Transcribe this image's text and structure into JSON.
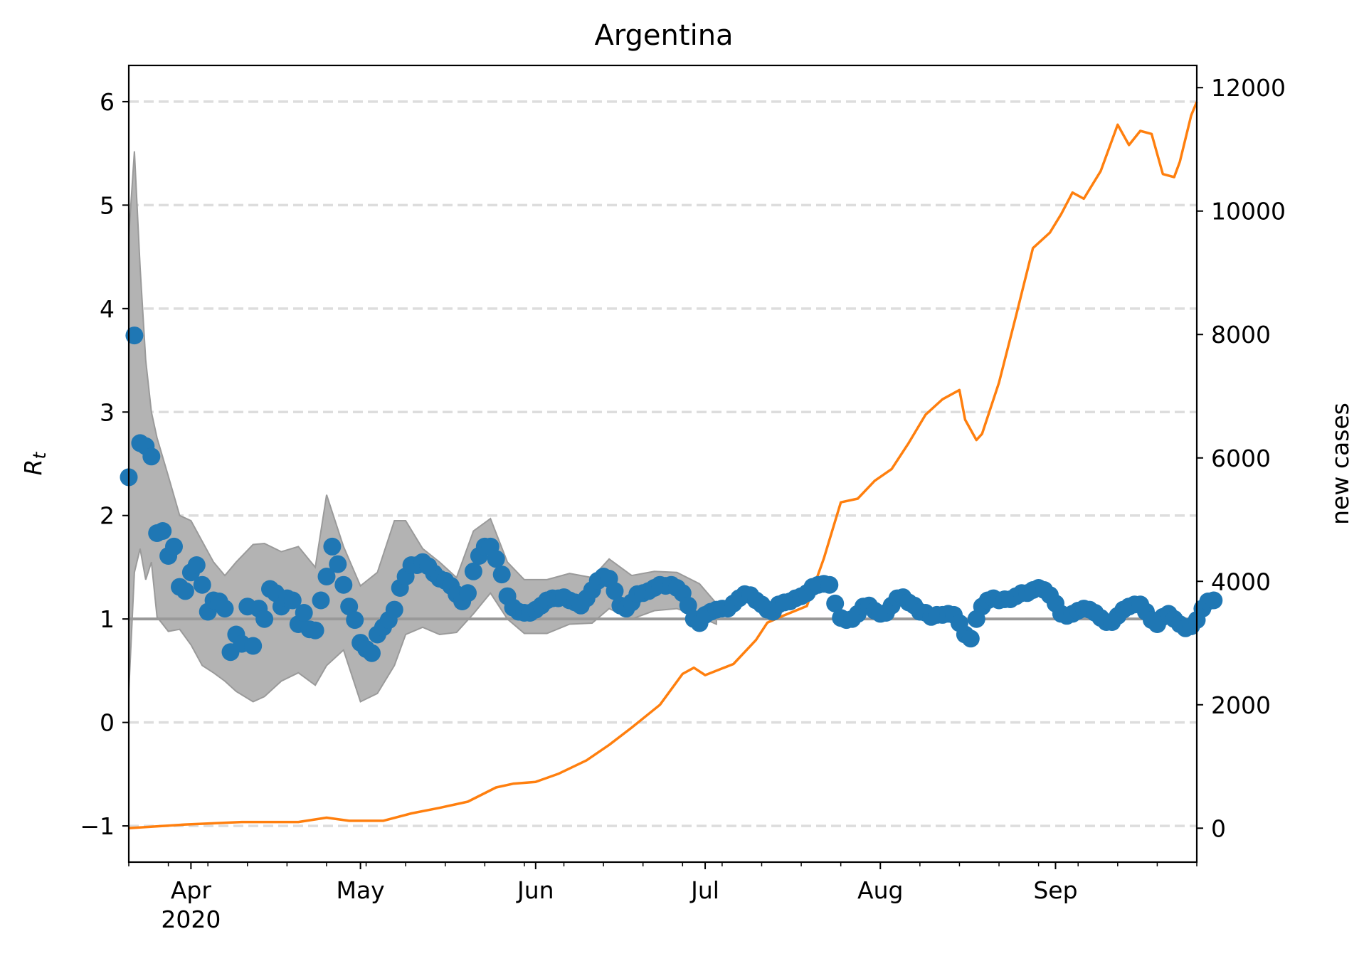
{
  "colors": {
    "rt_points": "#1f77b4",
    "cases_line": "#ff7f0e",
    "ci_band": "#b3b3b3",
    "reference_line": "#999999",
    "grid": "#dddddd"
  },
  "chart_data": {
    "type": "line",
    "title": "Argentina",
    "ylabel_left": {
      "base": "R",
      "subscript": "t"
    },
    "ylabel_right": "new cases",
    "grid": "horizontal dashed (left axis)",
    "legend": "none",
    "x_axis": {
      "range": [
        "2020-03-21",
        "2020-09-26"
      ],
      "month_labels": [
        {
          "date": "2020-04-01",
          "label": "Apr",
          "sub": "2020"
        },
        {
          "date": "2020-05-01",
          "label": "May",
          "sub": ""
        },
        {
          "date": "2020-06-01",
          "label": "Jun",
          "sub": ""
        },
        {
          "date": "2020-07-01",
          "label": "Jul",
          "sub": ""
        },
        {
          "date": "2020-08-01",
          "label": "Aug",
          "sub": ""
        },
        {
          "date": "2020-09-01",
          "label": "Sep",
          "sub": ""
        }
      ],
      "minor_ticks": "weekly"
    },
    "y_left": {
      "range": [
        -1.35,
        6.35
      ],
      "ticks": [
        -1,
        0,
        1,
        2,
        3,
        4,
        5,
        6
      ],
      "tick_labels": [
        "−1",
        "0",
        "1",
        "2",
        "3",
        "4",
        "5",
        "6"
      ],
      "reference_line": 1
    },
    "y_right": {
      "range": [
        -550,
        12360
      ],
      "ticks": [
        0,
        2000,
        4000,
        6000,
        8000,
        10000,
        12000
      ],
      "tick_labels": [
        "0",
        "2000",
        "4000",
        "6000",
        "8000",
        "10000",
        "12000"
      ]
    },
    "series": [
      {
        "axis": "left",
        "kind": "scatter",
        "x_start": "2020-03-21",
        "x_step_days": 1,
        "values": [
          2.37,
          3.74,
          2.7,
          2.67,
          2.57,
          1.83,
          1.85,
          1.61,
          1.7,
          1.31,
          1.27,
          1.45,
          1.52,
          1.33,
          1.07,
          1.18,
          1.17,
          1.1,
          0.68,
          0.85,
          0.76,
          1.12,
          0.74,
          1.1,
          1.0,
          1.29,
          1.25,
          1.12,
          1.2,
          1.18,
          0.95,
          1.06,
          0.9,
          0.89,
          1.18,
          1.41,
          1.7,
          1.53,
          1.33,
          1.12,
          0.99,
          0.77,
          0.71,
          0.67,
          0.85,
          0.92,
          0.99,
          1.09,
          1.3,
          1.41,
          1.52,
          1.52,
          1.55,
          1.51,
          1.44,
          1.39,
          1.37,
          1.32,
          1.24,
          1.17,
          1.25,
          1.46,
          1.61,
          1.7,
          1.7,
          1.58,
          1.43,
          1.22,
          1.11,
          1.07,
          1.06,
          1.06,
          1.09,
          1.13,
          1.18,
          1.2,
          1.2,
          1.21,
          1.18,
          1.16,
          1.13,
          1.2,
          1.28,
          1.37,
          1.41,
          1.39,
          1.27,
          1.13,
          1.1,
          1.16,
          1.24,
          1.25,
          1.27,
          1.3,
          1.33,
          1.32,
          1.33,
          1.3,
          1.25,
          1.13,
          1.0,
          0.96,
          1.04,
          1.07,
          1.09,
          1.1,
          1.1,
          1.15,
          1.2,
          1.24,
          1.23,
          1.18,
          1.14,
          1.09,
          1.07,
          1.14,
          1.16,
          1.17,
          1.2,
          1.22,
          1.25,
          1.31,
          1.33,
          1.34,
          1.33,
          1.15,
          1.01,
          0.99,
          1.0,
          1.05,
          1.12,
          1.13,
          1.08,
          1.05,
          1.06,
          1.13,
          1.2,
          1.21,
          1.16,
          1.13,
          1.07,
          1.06,
          1.02,
          1.04,
          1.04,
          1.05,
          1.04,
          0.96,
          0.85,
          0.81,
          1.0,
          1.12,
          1.18,
          1.2,
          1.18,
          1.19,
          1.19,
          1.22,
          1.25,
          1.25,
          1.28,
          1.3,
          1.28,
          1.23,
          1.15,
          1.05,
          1.03,
          1.05,
          1.08,
          1.1,
          1.09,
          1.06,
          1.01,
          0.97,
          0.97,
          1.03,
          1.09,
          1.12,
          1.14,
          1.14,
          1.07,
          0.99,
          0.95,
          1.02,
          1.05,
          1.0,
          0.95,
          0.91,
          0.93,
          0.99,
          1.1,
          1.17,
          1.18
        ]
      },
      {
        "axis": "left",
        "kind": "band",
        "x": [
          "2020-03-21",
          "2020-03-22",
          "2020-03-23",
          "2020-03-24",
          "2020-03-25",
          "2020-03-26",
          "2020-03-28",
          "2020-03-30",
          "2020-04-01",
          "2020-04-03",
          "2020-04-05",
          "2020-04-07",
          "2020-04-09",
          "2020-04-12",
          "2020-04-14",
          "2020-04-17",
          "2020-04-20",
          "2020-04-23",
          "2020-04-25",
          "2020-04-28",
          "2020-05-01",
          "2020-05-04",
          "2020-05-07",
          "2020-05-09",
          "2020-05-12",
          "2020-05-15",
          "2020-05-18",
          "2020-05-21",
          "2020-05-24",
          "2020-05-27",
          "2020-05-30",
          "2020-06-03",
          "2020-06-07",
          "2020-06-11",
          "2020-06-14",
          "2020-06-18",
          "2020-06-22",
          "2020-06-26",
          "2020-06-30",
          "2020-07-03"
        ],
        "upper": [
          4.7,
          5.52,
          4.4,
          3.5,
          3.0,
          2.75,
          2.38,
          2.0,
          1.95,
          1.75,
          1.55,
          1.42,
          1.55,
          1.72,
          1.73,
          1.65,
          1.7,
          1.5,
          2.2,
          1.7,
          1.32,
          1.45,
          1.95,
          1.95,
          1.68,
          1.55,
          1.4,
          1.85,
          1.97,
          1.55,
          1.38,
          1.38,
          1.44,
          1.4,
          1.58,
          1.42,
          1.46,
          1.45,
          1.34,
          1.15
        ],
        "lower": [
          0.3,
          1.45,
          1.68,
          1.38,
          1.55,
          1.02,
          0.88,
          0.9,
          0.75,
          0.55,
          0.48,
          0.4,
          0.3,
          0.2,
          0.25,
          0.4,
          0.48,
          0.36,
          0.55,
          0.7,
          0.2,
          0.28,
          0.55,
          0.85,
          0.92,
          0.85,
          0.87,
          1.05,
          1.25,
          1.0,
          0.86,
          0.86,
          0.95,
          0.96,
          1.1,
          1.0,
          1.08,
          1.1,
          1.02,
          0.95
        ]
      },
      {
        "axis": "right",
        "kind": "line",
        "x": [
          "2020-03-21",
          "2020-03-31",
          "2020-04-10",
          "2020-04-20",
          "2020-04-25",
          "2020-04-29",
          "2020-05-05",
          "2020-05-10",
          "2020-05-15",
          "2020-05-20",
          "2020-05-25",
          "2020-05-28",
          "2020-06-01",
          "2020-06-05",
          "2020-06-10",
          "2020-06-14",
          "2020-06-18",
          "2020-06-23",
          "2020-06-27",
          "2020-06-29",
          "2020-07-01",
          "2020-07-06",
          "2020-07-10",
          "2020-07-12",
          "2020-07-15",
          "2020-07-19",
          "2020-07-22",
          "2020-07-25",
          "2020-07-28",
          "2020-07-31",
          "2020-08-03",
          "2020-08-06",
          "2020-08-09",
          "2020-08-12",
          "2020-08-15",
          "2020-08-16",
          "2020-08-18",
          "2020-08-19",
          "2020-08-22",
          "2020-08-25",
          "2020-08-28",
          "2020-08-31",
          "2020-09-02",
          "2020-09-04",
          "2020-09-06",
          "2020-09-07",
          "2020-09-09",
          "2020-09-12",
          "2020-09-14",
          "2020-09-16",
          "2020-09-18",
          "2020-09-20",
          "2020-09-22",
          "2020-09-23",
          "2020-09-25",
          "2020-09-26"
        ],
        "values": [
          0,
          60,
          100,
          100,
          170,
          120,
          120,
          240,
          330,
          430,
          660,
          720,
          750,
          880,
          1100,
          1350,
          1630,
          2000,
          2500,
          2600,
          2480,
          2660,
          3050,
          3330,
          3450,
          3600,
          4370,
          5280,
          5340,
          5630,
          5820,
          6240,
          6700,
          6950,
          7100,
          6620,
          6290,
          6390,
          7220,
          8300,
          9400,
          9650,
          9950,
          10300,
          10200,
          10350,
          10650,
          11400,
          11070,
          11300,
          11250,
          10600,
          10550,
          10800,
          11550,
          11770
        ]
      }
    ]
  }
}
